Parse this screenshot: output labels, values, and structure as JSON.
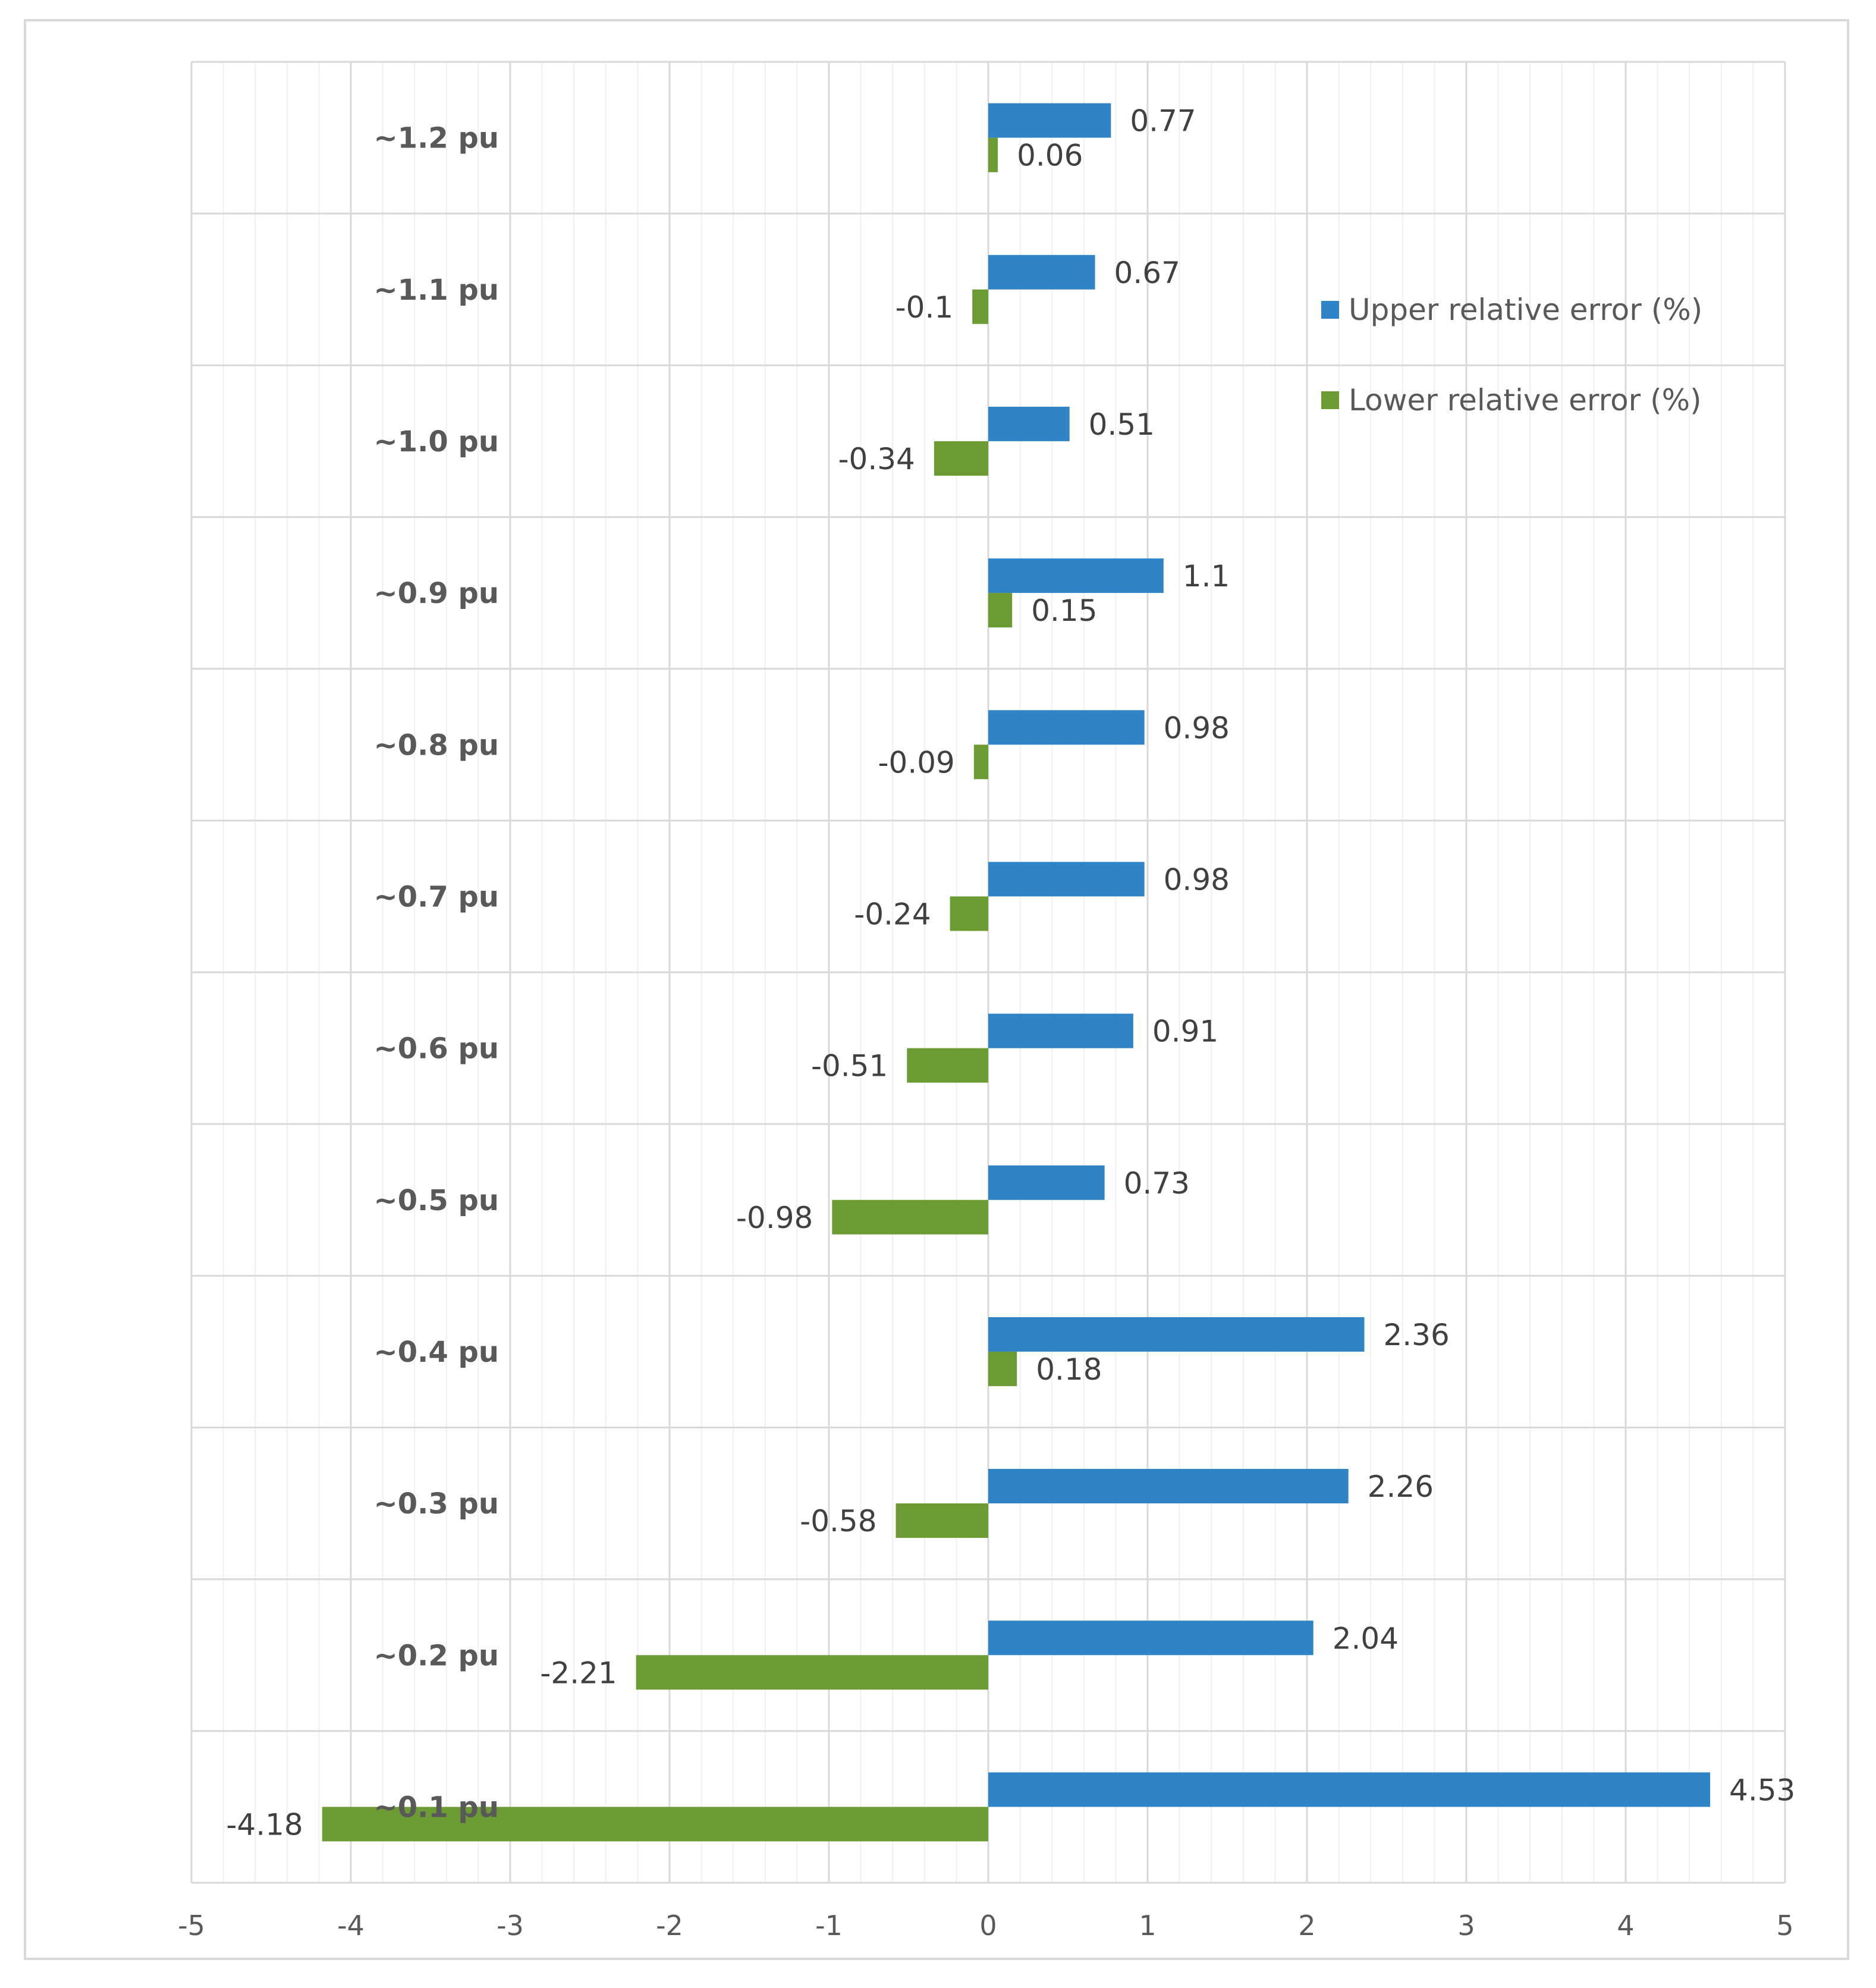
{
  "chart_data": {
    "type": "bar",
    "orientation": "horizontal",
    "categories": [
      "~1.2 pu",
      "~1.1 pu",
      "~1.0 pu",
      "~0.9 pu",
      "~0.8 pu",
      "~0.7 pu",
      "~0.6 pu",
      "~0.5 pu",
      "~0.4 pu",
      "~0.3 pu",
      "~0.2 pu",
      "~0.1 pu"
    ],
    "series": [
      {
        "name": "Upper relative error (%)",
        "color": "#2e84c6",
        "values": [
          0.77,
          0.67,
          0.51,
          1.1,
          0.98,
          0.98,
          0.91,
          0.73,
          2.36,
          2.26,
          2.04,
          4.53
        ],
        "labels": [
          "0.77",
          "0.67",
          "0.51",
          "1.1",
          "0.98",
          "0.98",
          "0.91",
          "0.73",
          "2.36",
          "2.26",
          "2.04",
          "4.53"
        ]
      },
      {
        "name": "Lower relative error (%)",
        "color": "#6c9a33",
        "values": [
          0.06,
          -0.1,
          -0.34,
          0.15,
          -0.09,
          -0.24,
          -0.51,
          -0.98,
          0.18,
          -0.58,
          -2.21,
          -4.18
        ],
        "labels": [
          "0.06",
          "-0.1",
          "-0.34",
          "0.15",
          "-0.09",
          "-0.24",
          "-0.51",
          "-0.98",
          "0.18",
          "-0.58",
          "-2.21",
          "-4.18"
        ]
      }
    ],
    "xlim": [
      -5,
      5
    ],
    "xticks": [
      -5,
      -4,
      -3,
      -2,
      -1,
      0,
      1,
      2,
      3,
      4,
      5
    ],
    "xtick_labels": [
      "-5",
      "-4",
      "-3",
      "-2",
      "-1",
      "0",
      "1",
      "2",
      "3",
      "4",
      "5"
    ],
    "title": "",
    "xlabel": "",
    "ylabel": "",
    "grid": true,
    "minor_grid": true,
    "legend_position": "top-right"
  }
}
